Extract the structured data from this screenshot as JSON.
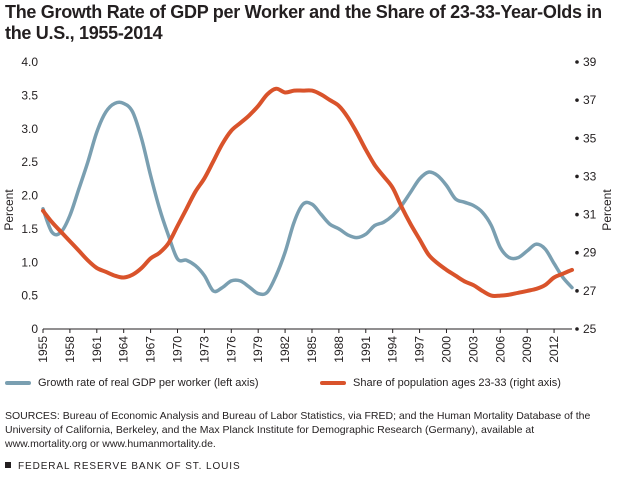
{
  "chart_data": {
    "type": "line",
    "title": "The Growth Rate of GDP per Worker and the Share of 23-33-Year-Olds in the U.S., 1955-2014",
    "xlabel": "",
    "ylabel_left": "Percent",
    "ylabel_right": "Percent",
    "xlim": [
      1955,
      2014
    ],
    "ylim_left": [
      0,
      4.0
    ],
    "ylim_right": [
      25,
      39
    ],
    "x_ticks": [
      "1955",
      "1958",
      "1961",
      "1964",
      "1967",
      "1970",
      "1973",
      "1976",
      "1979",
      "1982",
      "1985",
      "1988",
      "1991",
      "1994",
      "1997",
      "2000",
      "2003",
      "2006",
      "2009",
      "2012"
    ],
    "y_ticks_left": [
      "0",
      "0.5",
      "1.0",
      "1.5",
      "2.0",
      "2.5",
      "3.0",
      "3.5",
      "4.0"
    ],
    "y_ticks_right": [
      "25",
      "27",
      "29",
      "31",
      "33",
      "35",
      "37",
      "39"
    ],
    "grid": false,
    "series": [
      {
        "name": "Growth rate of real GDP per worker (left axis)",
        "axis": "left",
        "color": "#7a9fb1",
        "x": [
          1955,
          1956,
          1957,
          1958,
          1959,
          1960,
          1961,
          1962,
          1963,
          1964,
          1965,
          1966,
          1967,
          1968,
          1969,
          1970,
          1971,
          1972,
          1973,
          1974,
          1975,
          1976,
          1977,
          1978,
          1979,
          1980,
          1981,
          1982,
          1983,
          1984,
          1985,
          1986,
          1987,
          1988,
          1989,
          1990,
          1991,
          1992,
          1993,
          1994,
          1995,
          1996,
          1997,
          1998,
          1999,
          2000,
          2001,
          2002,
          2003,
          2004,
          2005,
          2006,
          2007,
          2008,
          2009,
          2010,
          2011,
          2012,
          2013,
          2014
        ],
        "values": [
          1.8,
          1.45,
          1.45,
          1.7,
          2.1,
          2.5,
          2.95,
          3.25,
          3.38,
          3.38,
          3.25,
          2.85,
          2.3,
          1.8,
          1.4,
          1.05,
          1.03,
          0.95,
          0.8,
          0.57,
          0.62,
          0.72,
          0.72,
          0.63,
          0.53,
          0.55,
          0.8,
          1.15,
          1.6,
          1.87,
          1.87,
          1.72,
          1.57,
          1.5,
          1.41,
          1.37,
          1.42,
          1.55,
          1.6,
          1.7,
          1.85,
          2.05,
          2.25,
          2.35,
          2.3,
          2.15,
          1.95,
          1.9,
          1.85,
          1.75,
          1.55,
          1.22,
          1.07,
          1.07,
          1.17,
          1.27,
          1.2,
          0.98,
          0.77,
          0.62
        ]
      },
      {
        "name": "Share of population ages 23-33 (right axis)",
        "axis": "right",
        "color": "#d9532b",
        "x": [
          1955,
          1956,
          1957,
          1958,
          1959,
          1960,
          1961,
          1962,
          1963,
          1964,
          1965,
          1966,
          1967,
          1968,
          1969,
          1970,
          1971,
          1972,
          1973,
          1974,
          1975,
          1976,
          1977,
          1978,
          1979,
          1980,
          1981,
          1982,
          1983,
          1984,
          1985,
          1986,
          1987,
          1988,
          1989,
          1990,
          1991,
          1992,
          1993,
          1994,
          1995,
          1996,
          1997,
          1998,
          1999,
          2000,
          2001,
          2002,
          2003,
          2004,
          2005,
          2006,
          2007,
          2008,
          2009,
          2010,
          2011,
          2012,
          2013,
          2014
        ],
        "values": [
          31.2,
          30.6,
          30.1,
          29.6,
          29.1,
          28.6,
          28.2,
          28.0,
          27.8,
          27.7,
          27.85,
          28.2,
          28.7,
          29.0,
          29.5,
          30.4,
          31.3,
          32.2,
          32.9,
          33.8,
          34.7,
          35.4,
          35.8,
          36.2,
          36.7,
          37.3,
          37.6,
          37.4,
          37.5,
          37.5,
          37.5,
          37.3,
          37.0,
          36.7,
          36.1,
          35.3,
          34.4,
          33.6,
          33.0,
          32.4,
          31.4,
          30.5,
          29.7,
          28.9,
          28.45,
          28.1,
          27.8,
          27.5,
          27.3,
          27.0,
          26.75,
          26.75,
          26.8,
          26.9,
          27.0,
          27.1,
          27.3,
          27.7,
          27.9,
          28.1
        ]
      }
    ]
  },
  "legend": {
    "left_label": "Growth rate of real GDP per worker (left axis)",
    "right_label": "Share of population ages 23-33 (right axis)"
  },
  "sources": "SOURCES: Bureau of Economic Analysis and Bureau of Labor Statistics, via FRED; and the Human Mortality Database of the University of California, Berkeley, and the Max Planck Institute for Demographic Research (Germany), available at www.mortality.org or www.humanmortality.de.",
  "footer": "FEDERAL RESERVE BANK OF ST. LOUIS"
}
